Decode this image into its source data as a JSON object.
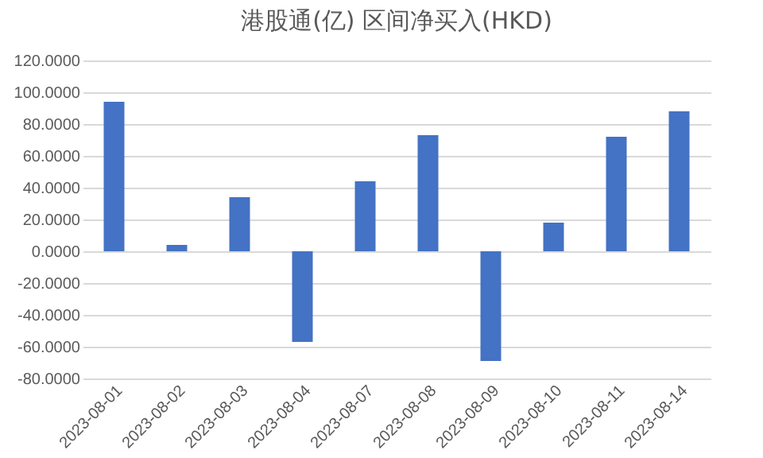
{
  "chart_data": {
    "type": "bar",
    "title": "港股通(亿) 区间净买入(HKD)",
    "categories": [
      "2023-08-01",
      "2023-08-02",
      "2023-08-03",
      "2023-08-04",
      "2023-08-07",
      "2023-08-08",
      "2023-08-09",
      "2023-08-10",
      "2023-08-11",
      "2023-08-14"
    ],
    "values": [
      94,
      4,
      34,
      -57,
      44,
      73,
      -69,
      18,
      72,
      88
    ],
    "color": "#4472c4",
    "ylim": [
      -80,
      120
    ],
    "yticks": [
      {
        "value": -80,
        "label": "-80.0000"
      },
      {
        "value": -60,
        "label": "-60.0000"
      },
      {
        "value": -40,
        "label": "-40.0000"
      },
      {
        "value": -20,
        "label": "-20.0000"
      },
      {
        "value": 0,
        "label": "0.0000"
      },
      {
        "value": 20,
        "label": "20.0000"
      },
      {
        "value": 40,
        "label": "40.0000"
      },
      {
        "value": 60,
        "label": "60.0000"
      },
      {
        "value": 80,
        "label": "80.0000"
      },
      {
        "value": 100,
        "label": "100.0000"
      },
      {
        "value": 120,
        "label": "120.0000"
      }
    ],
    "grid": true
  }
}
